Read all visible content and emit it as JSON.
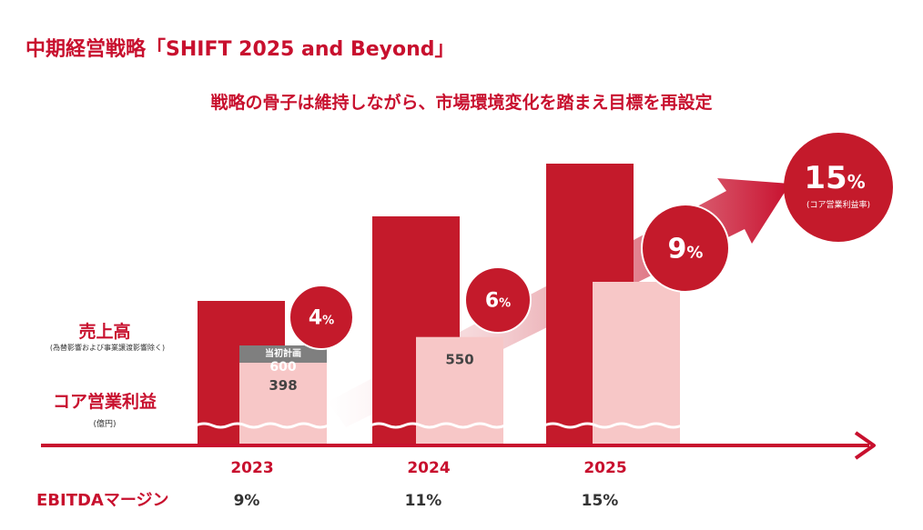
{
  "title": "中期経営戦略「SHIFT 2025 and Beyond」",
  "subtitle": "戦略の骨子は維持しながら、市場環境変化を踏まえ目標を再設定",
  "colors": {
    "accent": "#c8102e",
    "bar_dark": "#c41a2b",
    "bar_light": "#f7c7c7",
    "plan_gray": "#7f7f7f"
  },
  "chart_data": {
    "type": "bar",
    "categories": [
      "2023",
      "2024",
      "2025"
    ],
    "series": [
      {
        "name": "売上高",
        "note": "(為替影響および事業譲渡影響除く)",
        "values": [
          null,
          null,
          null
        ]
      },
      {
        "name": "コア営業利益",
        "note": "(億円)",
        "values": [
          398,
          550,
          null
        ]
      }
    ],
    "plan": {
      "label": "当初計画",
      "category": "2023",
      "value": 600
    },
    "margins": [
      {
        "category": "2023",
        "label": "4%"
      },
      {
        "category": "2024",
        "label": "6%"
      },
      {
        "category": "2025",
        "label": "9%"
      }
    ],
    "target": {
      "value": "15%",
      "label": "(コア営業利益率)"
    },
    "ebitda": {
      "label": "EBITDAマージン",
      "values": [
        "9%",
        "11%",
        "15%"
      ]
    }
  }
}
